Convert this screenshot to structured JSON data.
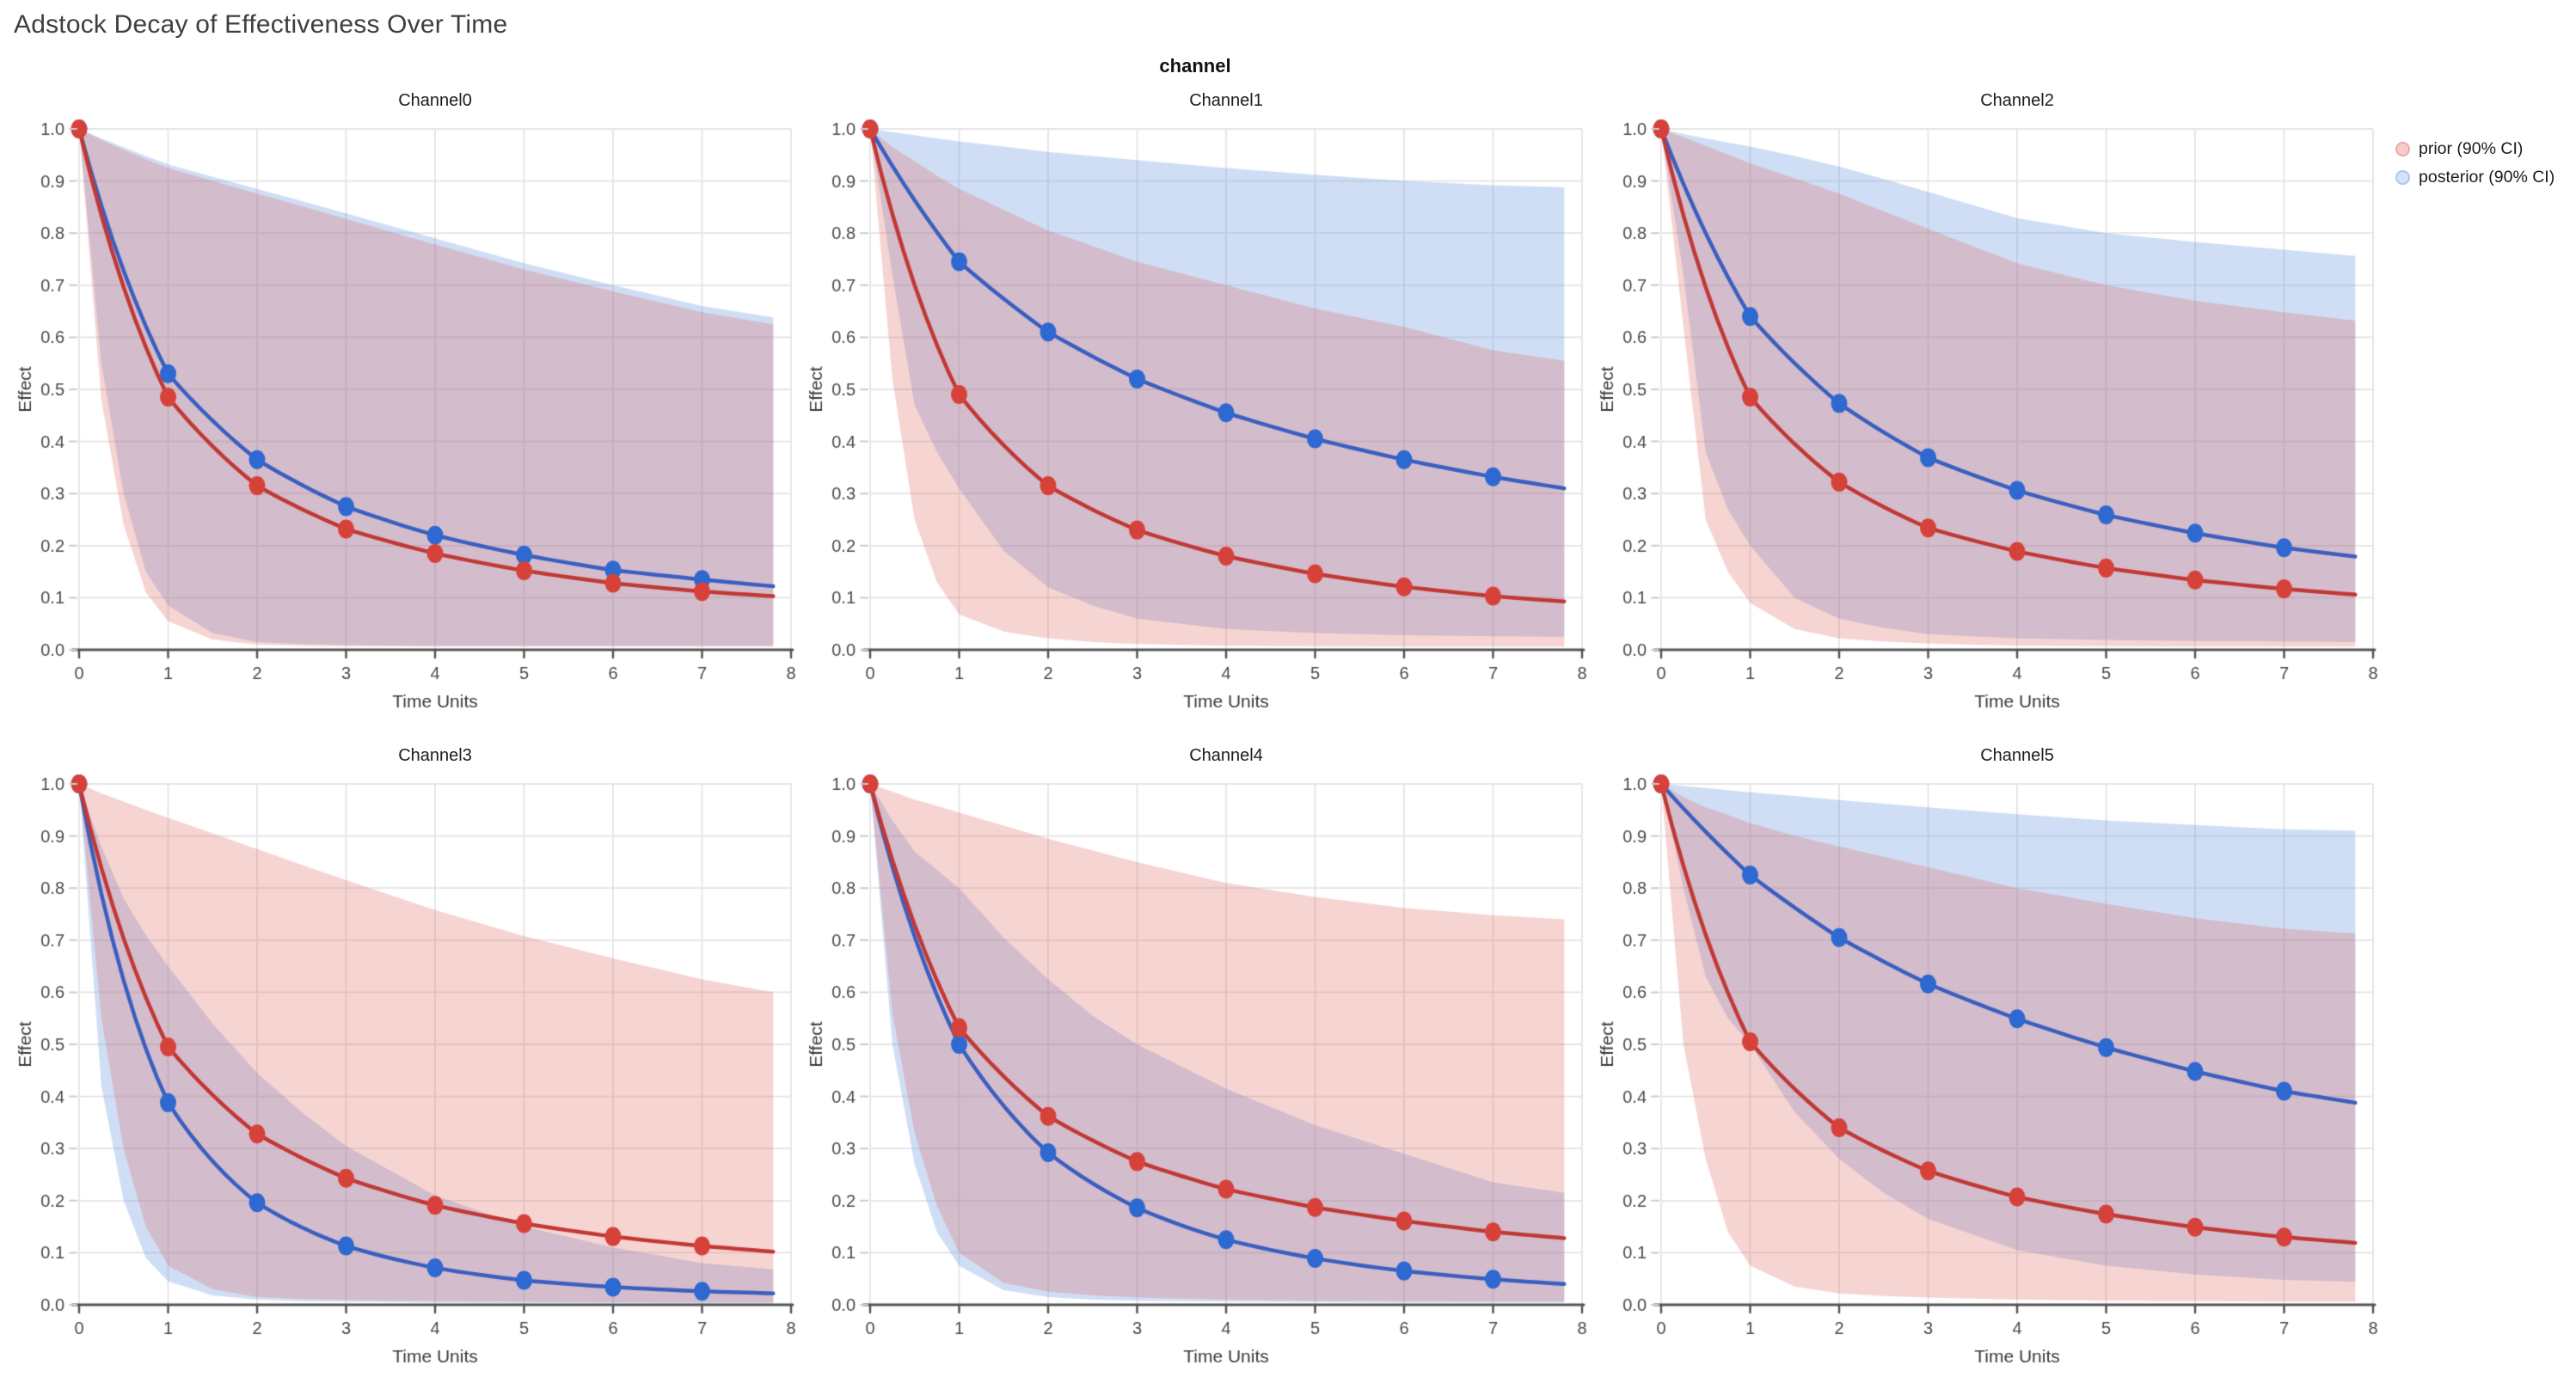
{
  "chart_data": {
    "type": "line",
    "title": "Adstock Decay of Effectiveness Over Time",
    "facet_label": "channel",
    "xlabel": "Time Units",
    "ylabel": "Effect",
    "xlim": [
      0,
      8
    ],
    "ylim": [
      0,
      1
    ],
    "xticks": [
      0,
      1,
      2,
      3,
      4,
      5,
      6,
      7,
      8
    ],
    "xtick_labels": [
      "0",
      "1",
      "2",
      "3",
      "4",
      "5",
      "6",
      "7",
      "8"
    ],
    "yticks": [
      0,
      0.1,
      0.2,
      0.3,
      0.4,
      0.5,
      0.6,
      0.7,
      0.8,
      0.9,
      1.0
    ],
    "ytick_labels": [
      "0.0",
      "0.1",
      "0.2",
      "0.3",
      "0.4",
      "0.5",
      "0.6",
      "0.7",
      "0.8",
      "0.9",
      "1.0"
    ],
    "grid": true,
    "legend_position": "top-right-outside",
    "legend": [
      {
        "label": "prior (90% CI)",
        "series": "prior"
      },
      {
        "label": "posterior (90% CI)",
        "series": "posterior"
      }
    ],
    "marker_x": [
      0,
      1,
      2,
      3,
      4,
      5,
      6,
      7
    ],
    "curve_end_x": 7.8,
    "band_x": [
      0,
      0.25,
      0.5,
      0.75,
      1,
      1.5,
      2,
      2.5,
      3,
      4,
      5,
      6,
      7,
      7.8
    ],
    "style": {
      "grid_color": "#e4e4e4",
      "axis_color": "#555555",
      "ytick_color": "#cbcbcb",
      "tick_label_color": "#4a4a4a",
      "axis_title_color": "#3a3a3a",
      "prior_line": "#c13835",
      "prior_marker": "#d6423a",
      "posterior_line": "#3a5fc0",
      "posterior_marker": "#2e68d1",
      "prior_band": "rgba(221,99,95,0.28)",
      "posterior_band": "rgba(95,146,222,0.30)"
    },
    "subplots": [
      {
        "title": "Channel0",
        "prior": {
          "y": [
            1,
            0.485,
            0.315,
            0.232,
            0.185,
            0.152,
            0.128,
            0.112
          ],
          "end": 0.103,
          "upper": [
            1,
            0.979,
            0.96,
            0.942,
            0.925,
            0.9,
            0.876,
            0.852,
            0.827,
            0.778,
            0.73,
            0.688,
            0.648,
            0.625
          ],
          "lower": [
            1,
            0.48,
            0.24,
            0.11,
            0.055,
            0.02,
            0.01,
            0.008,
            0.007,
            0.006,
            0.006,
            0.006,
            0.006,
            0.006
          ]
        },
        "posterior": {
          "y": [
            1,
            0.53,
            0.365,
            0.275,
            0.22,
            0.182,
            0.153,
            0.135
          ],
          "end": 0.122,
          "upper": [
            1,
            0.982,
            0.965,
            0.948,
            0.932,
            0.908,
            0.885,
            0.862,
            0.838,
            0.79,
            0.742,
            0.7,
            0.66,
            0.638
          ],
          "lower": [
            1,
            0.55,
            0.3,
            0.15,
            0.085,
            0.032,
            0.015,
            0.011,
            0.009,
            0.008,
            0.008,
            0.008,
            0.008,
            0.008
          ]
        }
      },
      {
        "title": "Channel1",
        "prior": {
          "y": [
            1,
            0.49,
            0.315,
            0.23,
            0.18,
            0.146,
            0.121,
            0.103
          ],
          "end": 0.093,
          "upper": [
            1,
            0.965,
            0.938,
            0.91,
            0.885,
            0.845,
            0.805,
            0.775,
            0.745,
            0.7,
            0.655,
            0.62,
            0.575,
            0.555
          ],
          "lower": [
            1,
            0.52,
            0.25,
            0.13,
            0.068,
            0.035,
            0.022,
            0.015,
            0.011,
            0.008,
            0.007,
            0.006,
            0.006,
            0.006
          ]
        },
        "posterior": {
          "y": [
            1,
            0.745,
            0.61,
            0.52,
            0.455,
            0.405,
            0.365,
            0.332
          ],
          "end": 0.31,
          "upper": [
            1,
            0.994,
            0.988,
            0.982,
            0.976,
            0.966,
            0.956,
            0.948,
            0.94,
            0.925,
            0.912,
            0.9,
            0.892,
            0.888
          ],
          "lower": [
            1,
            0.72,
            0.47,
            0.38,
            0.31,
            0.19,
            0.12,
            0.085,
            0.06,
            0.04,
            0.032,
            0.028,
            0.026,
            0.025
          ]
        }
      },
      {
        "title": "Channel2",
        "prior": {
          "y": [
            1,
            0.485,
            0.322,
            0.234,
            0.189,
            0.157,
            0.134,
            0.117
          ],
          "end": 0.106,
          "upper": [
            1,
            0.984,
            0.968,
            0.951,
            0.934,
            0.905,
            0.876,
            0.842,
            0.808,
            0.742,
            0.7,
            0.67,
            0.648,
            0.632
          ],
          "lower": [
            1,
            0.62,
            0.25,
            0.15,
            0.09,
            0.04,
            0.022,
            0.016,
            0.012,
            0.008,
            0.007,
            0.006,
            0.006,
            0.006
          ]
        },
        "posterior": {
          "y": [
            1,
            0.64,
            0.473,
            0.369,
            0.306,
            0.259,
            0.224,
            0.196
          ],
          "end": 0.179,
          "upper": [
            1,
            0.99,
            0.982,
            0.974,
            0.966,
            0.948,
            0.928,
            0.904,
            0.879,
            0.829,
            0.8,
            0.783,
            0.768,
            0.756
          ],
          "lower": [
            1,
            0.72,
            0.38,
            0.27,
            0.2,
            0.1,
            0.06,
            0.042,
            0.03,
            0.022,
            0.019,
            0.017,
            0.016,
            0.015
          ]
        }
      },
      {
        "title": "Channel3",
        "prior": {
          "y": [
            1,
            0.495,
            0.328,
            0.243,
            0.191,
            0.156,
            0.131,
            0.113
          ],
          "end": 0.102,
          "upper": [
            1,
            0.982,
            0.966,
            0.95,
            0.935,
            0.905,
            0.875,
            0.845,
            0.815,
            0.758,
            0.708,
            0.665,
            0.625,
            0.6
          ],
          "lower": [
            1,
            0.55,
            0.3,
            0.15,
            0.075,
            0.03,
            0.015,
            0.011,
            0.009,
            0.007,
            0.006,
            0.005,
            0.005,
            0.005
          ]
        },
        "posterior": {
          "y": [
            1,
            0.388,
            0.196,
            0.113,
            0.071,
            0.047,
            0.034,
            0.026
          ],
          "end": 0.022,
          "upper": [
            1,
            0.88,
            0.78,
            0.71,
            0.65,
            0.54,
            0.445,
            0.37,
            0.305,
            0.21,
            0.15,
            0.11,
            0.08,
            0.068
          ],
          "lower": [
            1,
            0.42,
            0.2,
            0.09,
            0.045,
            0.018,
            0.01,
            0.007,
            0.006,
            0.004,
            0.003,
            0.003,
            0.002,
            0.002
          ]
        }
      },
      {
        "title": "Channel4",
        "prior": {
          "y": [
            1,
            0.532,
            0.362,
            0.275,
            0.222,
            0.187,
            0.161,
            0.14
          ],
          "end": 0.128,
          "upper": [
            1,
            0.985,
            0.97,
            0.958,
            0.945,
            0.92,
            0.895,
            0.872,
            0.85,
            0.81,
            0.783,
            0.762,
            0.748,
            0.74
          ],
          "lower": [
            1,
            0.56,
            0.33,
            0.19,
            0.1,
            0.042,
            0.025,
            0.018,
            0.014,
            0.01,
            0.008,
            0.007,
            0.006,
            0.006
          ]
        },
        "posterior": {
          "y": [
            1,
            0.5,
            0.292,
            0.186,
            0.125,
            0.089,
            0.065,
            0.049
          ],
          "end": 0.04,
          "upper": [
            1,
            0.93,
            0.87,
            0.835,
            0.8,
            0.705,
            0.625,
            0.555,
            0.5,
            0.415,
            0.345,
            0.29,
            0.235,
            0.215
          ],
          "lower": [
            1,
            0.5,
            0.27,
            0.14,
            0.075,
            0.028,
            0.015,
            0.01,
            0.008,
            0.006,
            0.005,
            0.004,
            0.004,
            0.004
          ]
        }
      },
      {
        "title": "Channel5",
        "prior": {
          "y": [
            1,
            0.505,
            0.34,
            0.257,
            0.207,
            0.174,
            0.149,
            0.13
          ],
          "end": 0.119,
          "upper": [
            1,
            0.975,
            0.955,
            0.94,
            0.925,
            0.9,
            0.88,
            0.86,
            0.84,
            0.8,
            0.77,
            0.742,
            0.722,
            0.713
          ],
          "lower": [
            1,
            0.5,
            0.28,
            0.14,
            0.075,
            0.035,
            0.022,
            0.017,
            0.014,
            0.01,
            0.008,
            0.007,
            0.006,
            0.006
          ]
        },
        "posterior": {
          "y": [
            1,
            0.825,
            0.705,
            0.616,
            0.549,
            0.494,
            0.448,
            0.41
          ],
          "end": 0.388,
          "upper": [
            1,
            0.996,
            0.992,
            0.988,
            0.984,
            0.977,
            0.969,
            0.962,
            0.955,
            0.942,
            0.93,
            0.921,
            0.913,
            0.91
          ],
          "lower": [
            1,
            0.8,
            0.63,
            0.55,
            0.5,
            0.37,
            0.28,
            0.215,
            0.165,
            0.105,
            0.075,
            0.058,
            0.048,
            0.044
          ]
        }
      }
    ]
  }
}
